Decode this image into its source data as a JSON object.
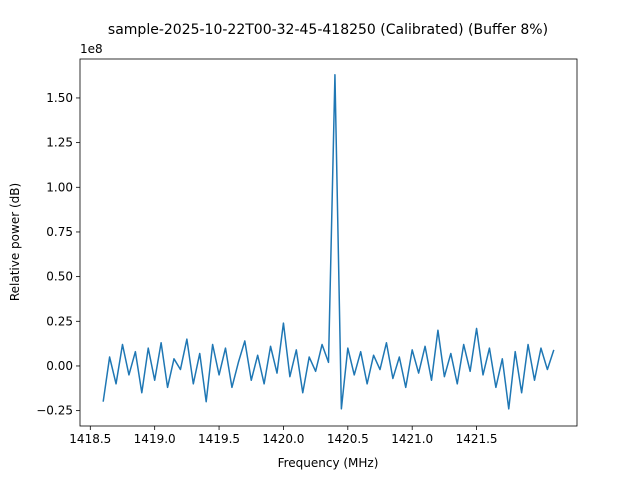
{
  "chart_data": {
    "type": "line",
    "title": "sample-2025-10-22T00-32-45-418250 (Calibrated) (Buffer 8%)",
    "x_label": "Frequency (MHz)",
    "y_label": "Relative power (dB)",
    "y_offset_text": "1e8",
    "x": [
      1418.6,
      1418.65,
      1418.7,
      1418.75,
      1418.8,
      1418.85,
      1418.9,
      1418.95,
      1419.0,
      1419.05,
      1419.1,
      1419.15,
      1419.2,
      1419.25,
      1419.3,
      1419.35,
      1419.4,
      1419.45,
      1419.5,
      1419.55,
      1419.6,
      1419.65,
      1419.7,
      1419.75,
      1419.8,
      1419.85,
      1419.9,
      1419.95,
      1420.0,
      1420.05,
      1420.1,
      1420.15,
      1420.2,
      1420.25,
      1420.3,
      1420.35,
      1420.4,
      1420.45,
      1420.5,
      1420.55,
      1420.6,
      1420.65,
      1420.7,
      1420.75,
      1420.8,
      1420.85,
      1420.9,
      1420.95,
      1421.0,
      1421.05,
      1421.1,
      1421.15,
      1421.2,
      1421.25,
      1421.3,
      1421.35,
      1421.4,
      1421.45,
      1421.5,
      1421.55,
      1421.6,
      1421.65,
      1421.7,
      1421.75,
      1421.8,
      1421.85,
      1421.9,
      1421.95,
      1422.0,
      1422.05,
      1422.1
    ],
    "series": [
      {
        "name": "Relative power",
        "color": "#1f77b4",
        "values": [
          -0.2,
          0.05,
          -0.1,
          0.12,
          -0.05,
          0.08,
          -0.15,
          0.1,
          -0.08,
          0.13,
          -0.12,
          0.04,
          -0.02,
          0.15,
          -0.1,
          0.07,
          -0.2,
          0.12,
          -0.05,
          0.1,
          -0.12,
          0.02,
          0.14,
          -0.08,
          0.06,
          -0.1,
          0.11,
          -0.04,
          0.24,
          -0.06,
          0.09,
          -0.15,
          0.05,
          -0.03,
          0.12,
          0.02,
          1.63,
          -0.24,
          0.1,
          -0.05,
          0.08,
          -0.1,
          0.06,
          -0.02,
          0.13,
          -0.07,
          0.05,
          -0.12,
          0.09,
          -0.04,
          0.11,
          -0.08,
          0.2,
          -0.06,
          0.07,
          -0.1,
          0.12,
          -0.03,
          0.21,
          -0.05,
          0.1,
          -0.12,
          0.04,
          -0.24,
          0.08,
          -0.15,
          0.12,
          -0.08,
          0.1,
          -0.02,
          0.09
        ]
      }
    ],
    "xlim": [
      1418.42,
      1422.28
    ],
    "xticks": [
      1418.5,
      {
        "value": 1419.0,
        "label": "1419.0"
      },
      1419.5,
      {
        "value": 1420.0,
        "label": "1420.0"
      },
      1420.5,
      {
        "value": 1421.0,
        "label": "1421.0"
      },
      1421.5
    ],
    "ylim": [
      -0.336,
      1.718
    ],
    "yticks": [
      {
        "value": -0.25,
        "label": "−0.25"
      },
      {
        "value": 0,
        "label": "0.00"
      },
      0.25,
      {
        "value": 0.5,
        "label": "0.50"
      },
      0.75,
      {
        "value": 1.0,
        "label": "1.00"
      },
      1.25,
      {
        "value": 1.5,
        "label": "1.50"
      }
    ],
    "grid": false
  }
}
